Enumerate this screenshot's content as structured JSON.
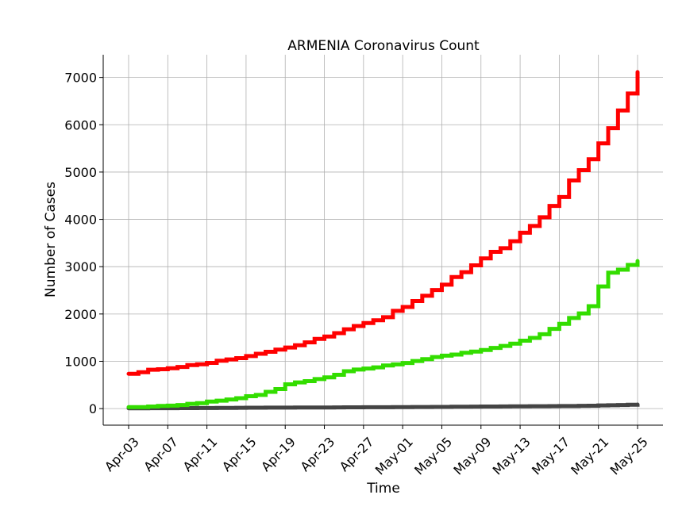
{
  "chart_data": {
    "type": "line",
    "title": "ARMENIA Coronavirus Count",
    "xlabel": "Time",
    "ylabel": "Number of Cases",
    "x_start": "2020-04-03",
    "x_end": "2020-05-25",
    "x_ticks": [
      "Apr-03",
      "Apr-07",
      "Apr-11",
      "Apr-15",
      "Apr-19",
      "Apr-23",
      "Apr-27",
      "May-01",
      "May-05",
      "May-09",
      "May-13",
      "May-17",
      "May-21",
      "May-25"
    ],
    "y_ticks": [
      0,
      1000,
      2000,
      3000,
      4000,
      5000,
      6000,
      7000
    ],
    "ylim": [
      -350,
      7480
    ],
    "grid": true,
    "dates": [
      "2020-04-03",
      "2020-04-04",
      "2020-04-05",
      "2020-04-06",
      "2020-04-07",
      "2020-04-08",
      "2020-04-09",
      "2020-04-10",
      "2020-04-11",
      "2020-04-12",
      "2020-04-13",
      "2020-04-14",
      "2020-04-15",
      "2020-04-16",
      "2020-04-17",
      "2020-04-18",
      "2020-04-19",
      "2020-04-20",
      "2020-04-21",
      "2020-04-22",
      "2020-04-23",
      "2020-04-24",
      "2020-04-25",
      "2020-04-26",
      "2020-04-27",
      "2020-04-28",
      "2020-04-29",
      "2020-04-30",
      "2020-05-01",
      "2020-05-02",
      "2020-05-03",
      "2020-05-04",
      "2020-05-05",
      "2020-05-06",
      "2020-05-07",
      "2020-05-08",
      "2020-05-09",
      "2020-05-10",
      "2020-05-11",
      "2020-05-12",
      "2020-05-13",
      "2020-05-14",
      "2020-05-15",
      "2020-05-16",
      "2020-05-17",
      "2020-05-18",
      "2020-05-19",
      "2020-05-20",
      "2020-05-21",
      "2020-05-22",
      "2020-05-23",
      "2020-05-24",
      "2020-05-25"
    ],
    "series": [
      {
        "color": "#ff0000",
        "values": [
          736,
          770,
          822,
          833,
          853,
          881,
          921,
          937,
          967,
          1013,
          1039,
          1067,
          1111,
          1159,
          1201,
          1248,
          1291,
          1339,
          1401,
          1473,
          1523,
          1596,
          1677,
          1746,
          1808,
          1867,
          1932,
          2066,
          2148,
          2273,
          2386,
          2507,
          2619,
          2782,
          2884,
          3029,
          3175,
          3313,
          3392,
          3538,
          3718,
          3860,
          4044,
          4283,
          4472,
          4823,
          5041,
          5271,
          5606,
          5928,
          6302,
          6661,
          7113
        ]
      },
      {
        "color": "#33dd00",
        "values": [
          31,
          31,
          43,
          57,
          62,
          75,
          100,
          116,
          148,
          168,
          192,
          219,
          261,
          290,
          355,
          413,
          513,
          554,
          580,
          625,
          661,
          715,
          791,
          826,
          846,
          872,
          911,
          935,
          964,
          1006,
          1046,
          1090,
          1120,
          1142,
          1179,
          1206,
          1239,
          1282,
          1325,
          1373,
          1435,
          1494,
          1571,
          1686,
          1791,
          1916,
          2012,
          2164,
          2583,
          2874,
          2936,
          3037,
          3118
        ]
      },
      {
        "color": "#444444",
        "values": [
          7,
          7,
          8,
          8,
          9,
          10,
          11,
          12,
          12,
          14,
          15,
          16,
          18,
          19,
          20,
          20,
          21,
          22,
          22,
          23,
          24,
          25,
          27,
          28,
          29,
          30,
          30,
          31,
          32,
          33,
          34,
          35,
          36,
          39,
          40,
          41,
          43,
          45,
          46,
          48,
          49,
          50,
          51,
          52,
          54,
          55,
          59,
          61,
          67,
          72,
          75,
          81,
          86
        ]
      }
    ]
  }
}
